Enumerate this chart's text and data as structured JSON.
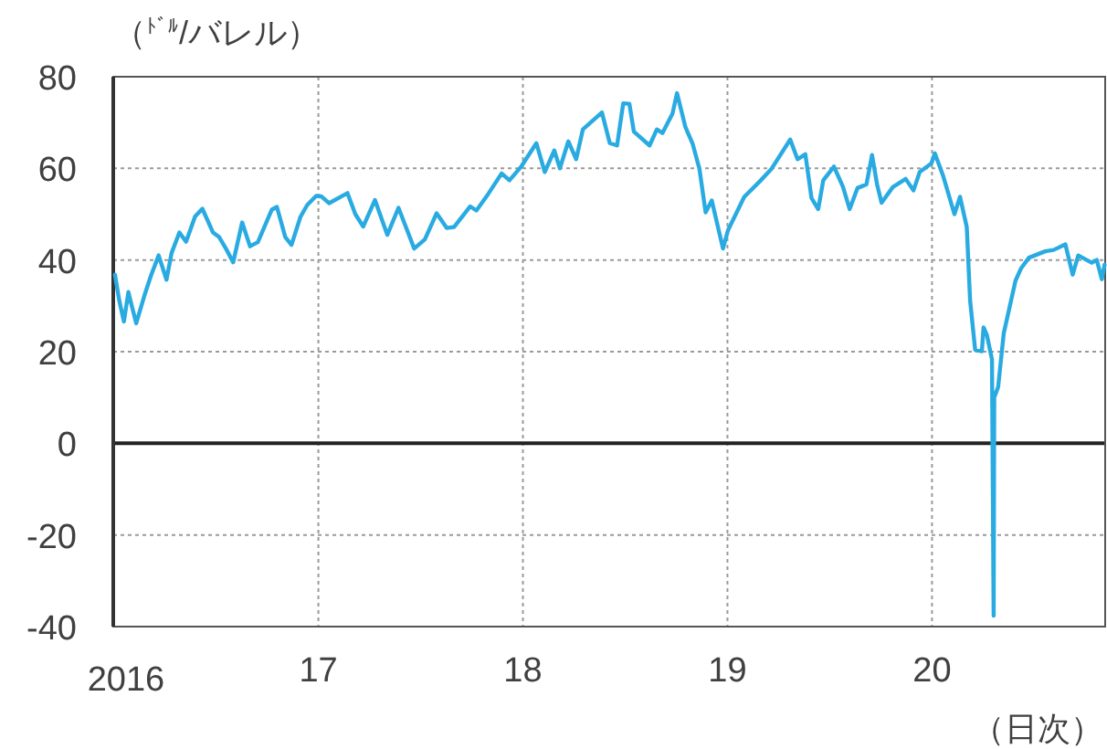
{
  "chart_data": {
    "type": "line",
    "ylabel": "（$^{ﾄﾞﾙ}$/バレル）",
    "xlabel": "（日次）",
    "xlim": [
      "2016-01-01",
      "2020-11-05"
    ],
    "ylim": [
      -40,
      80
    ],
    "xticks": [
      {
        "value": "2016-01-01",
        "label": "2016"
      },
      {
        "value": "2017-01-01",
        "label": "17"
      },
      {
        "value": "2018-01-01",
        "label": "18"
      },
      {
        "value": "2019-01-01",
        "label": "19"
      },
      {
        "value": "2020-01-01",
        "label": "20"
      }
    ],
    "yticks": [
      -40,
      -20,
      0,
      20,
      40,
      60,
      80
    ],
    "grid": true,
    "marker": "none",
    "line_style": "solid",
    "ref_lines": [
      {
        "axis": "y",
        "value": 0,
        "color": "#222222"
      }
    ],
    "series": [
      {
        "color": "#29abe2",
        "x": [
          "2016-01-04",
          "2016-01-12",
          "2016-01-20",
          "2016-01-28",
          "2016-02-03",
          "2016-02-11",
          "2016-02-25",
          "2016-03-08",
          "2016-03-22",
          "2016-04-05",
          "2016-04-14",
          "2016-04-28",
          "2016-05-10",
          "2016-05-26",
          "2016-06-08",
          "2016-06-27",
          "2016-07-08",
          "2016-07-20",
          "2016-08-02",
          "2016-08-18",
          "2016-09-01",
          "2016-09-15",
          "2016-10-10",
          "2016-10-19",
          "2016-11-03",
          "2016-11-14",
          "2016-11-30",
          "2016-12-12",
          "2016-12-28",
          "2017-01-06",
          "2017-01-20",
          "2017-02-22",
          "2017-03-08",
          "2017-03-22",
          "2017-04-12",
          "2017-05-04",
          "2017-05-24",
          "2017-06-21",
          "2017-07-10",
          "2017-07-31",
          "2017-08-18",
          "2017-08-31",
          "2017-09-29",
          "2017-10-10",
          "2017-10-31",
          "2017-11-24",
          "2017-12-08",
          "2017-12-29",
          "2018-01-25",
          "2018-02-09",
          "2018-02-26",
          "2018-03-08",
          "2018-03-23",
          "2018-04-06",
          "2018-04-18",
          "2018-05-22",
          "2018-06-05",
          "2018-06-18",
          "2018-06-29",
          "2018-07-10",
          "2018-07-18",
          "2018-08-15",
          "2018-08-28",
          "2018-09-07",
          "2018-09-25",
          "2018-10-03",
          "2018-10-18",
          "2018-10-31",
          "2018-11-12",
          "2018-11-23",
          "2018-12-04",
          "2018-12-24",
          "2019-01-02",
          "2019-01-31",
          "2019-02-28",
          "2019-03-20",
          "2019-04-23",
          "2019-05-06",
          "2019-05-20",
          "2019-05-31",
          "2019-06-12",
          "2019-06-21",
          "2019-07-10",
          "2019-07-26",
          "2019-08-07",
          "2019-08-21",
          "2019-09-06",
          "2019-09-16",
          "2019-09-25",
          "2019-10-03",
          "2019-10-23",
          "2019-11-15",
          "2019-11-29",
          "2019-12-10",
          "2019-12-31",
          "2020-01-06",
          "2020-01-21",
          "2020-02-10",
          "2020-02-20",
          "2020-03-03",
          "2020-03-09",
          "2020-03-18",
          "2020-03-30",
          "2020-04-02",
          "2020-04-08",
          "2020-04-17",
          "2020-04-20",
          "2020-04-21",
          "2020-04-28",
          "2020-05-08",
          "2020-05-29",
          "2020-06-08",
          "2020-06-22",
          "2020-07-21",
          "2020-08-05",
          "2020-08-26",
          "2020-09-08",
          "2020-09-18",
          "2020-09-30",
          "2020-10-12",
          "2020-10-21",
          "2020-10-30",
          "2020-11-04"
        ],
        "values": [
          36.8,
          31,
          26.6,
          33,
          30,
          26.2,
          32,
          36.5,
          41,
          35.7,
          41.5,
          46,
          44,
          49.5,
          51.2,
          46,
          45,
          42.5,
          39.5,
          48.2,
          43,
          43.9,
          51,
          51.6,
          45,
          43.3,
          49.4,
          52,
          54,
          53.9,
          52.4,
          54.6,
          50,
          47.3,
          53.1,
          45.5,
          51.4,
          42.5,
          44.5,
          50.2,
          47,
          47.2,
          51.7,
          50.8,
          54.4,
          58.9,
          57.4,
          60.4,
          65.5,
          59.2,
          63.9,
          60,
          65.9,
          62,
          68.5,
          72.2,
          65.5,
          65,
          74.2,
          74.1,
          68,
          65,
          68.5,
          67.7,
          72,
          76.4,
          69,
          65.3,
          59.9,
          50.4,
          53,
          42.5,
          46.5,
          53.8,
          57.2,
          59.8,
          66.3,
          62,
          63.1,
          53.5,
          51.1,
          57.4,
          60.4,
          56,
          51.1,
          55.7,
          56.5,
          62.9,
          56.5,
          52.5,
          55.9,
          57.7,
          55.2,
          59.2,
          61.1,
          63.3,
          58.3,
          50,
          53.8,
          47.2,
          31.1,
          20.4,
          20.1,
          25.3,
          23.6,
          18.3,
          -37.6,
          10,
          12.3,
          24,
          35.5,
          38.2,
          40.5,
          41.9,
          42.2,
          43.4,
          36.8,
          41,
          40.2,
          39.4,
          40,
          35.8,
          39
        ]
      }
    ]
  }
}
